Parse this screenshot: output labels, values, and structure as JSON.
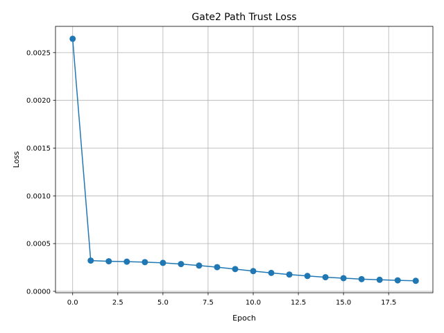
{
  "chart_data": {
    "type": "line",
    "title": "Gate2 Path Trust Loss",
    "xlabel": "Epoch",
    "ylabel": "Loss",
    "xlim": [
      -0.95,
      19.95
    ],
    "ylim": [
      -1.5e-05,
      0.002775
    ],
    "grid": true,
    "marker": "circle",
    "color": "#1f77b4",
    "xticks": [
      0.0,
      2.5,
      5.0,
      7.5,
      10.0,
      12.5,
      15.0,
      17.5
    ],
    "xtick_labels": [
      "0.0",
      "2.5",
      "5.0",
      "7.5",
      "10.0",
      "12.5",
      "15.0",
      "17.5"
    ],
    "yticks": [
      0.0,
      0.0005,
      0.001,
      0.0015,
      0.002,
      0.0025
    ],
    "ytick_labels": [
      "0.0000",
      "0.0005",
      "0.0010",
      "0.0015",
      "0.0020",
      "0.0025"
    ],
    "series": [
      {
        "x": [
          0,
          1,
          2,
          3,
          4,
          5,
          6,
          7,
          8,
          9,
          10,
          11,
          12,
          13,
          14,
          15,
          16,
          17,
          18,
          19
        ],
        "y": [
          0.002645,
          0.000322,
          0.000315,
          0.000311,
          0.000306,
          0.000298,
          0.000286,
          0.00027,
          0.000253,
          0.000233,
          0.000212,
          0.000193,
          0.000176,
          0.000161,
          0.000148,
          0.000138,
          0.000128,
          0.000121,
          0.000115,
          0.00011
        ]
      }
    ]
  }
}
